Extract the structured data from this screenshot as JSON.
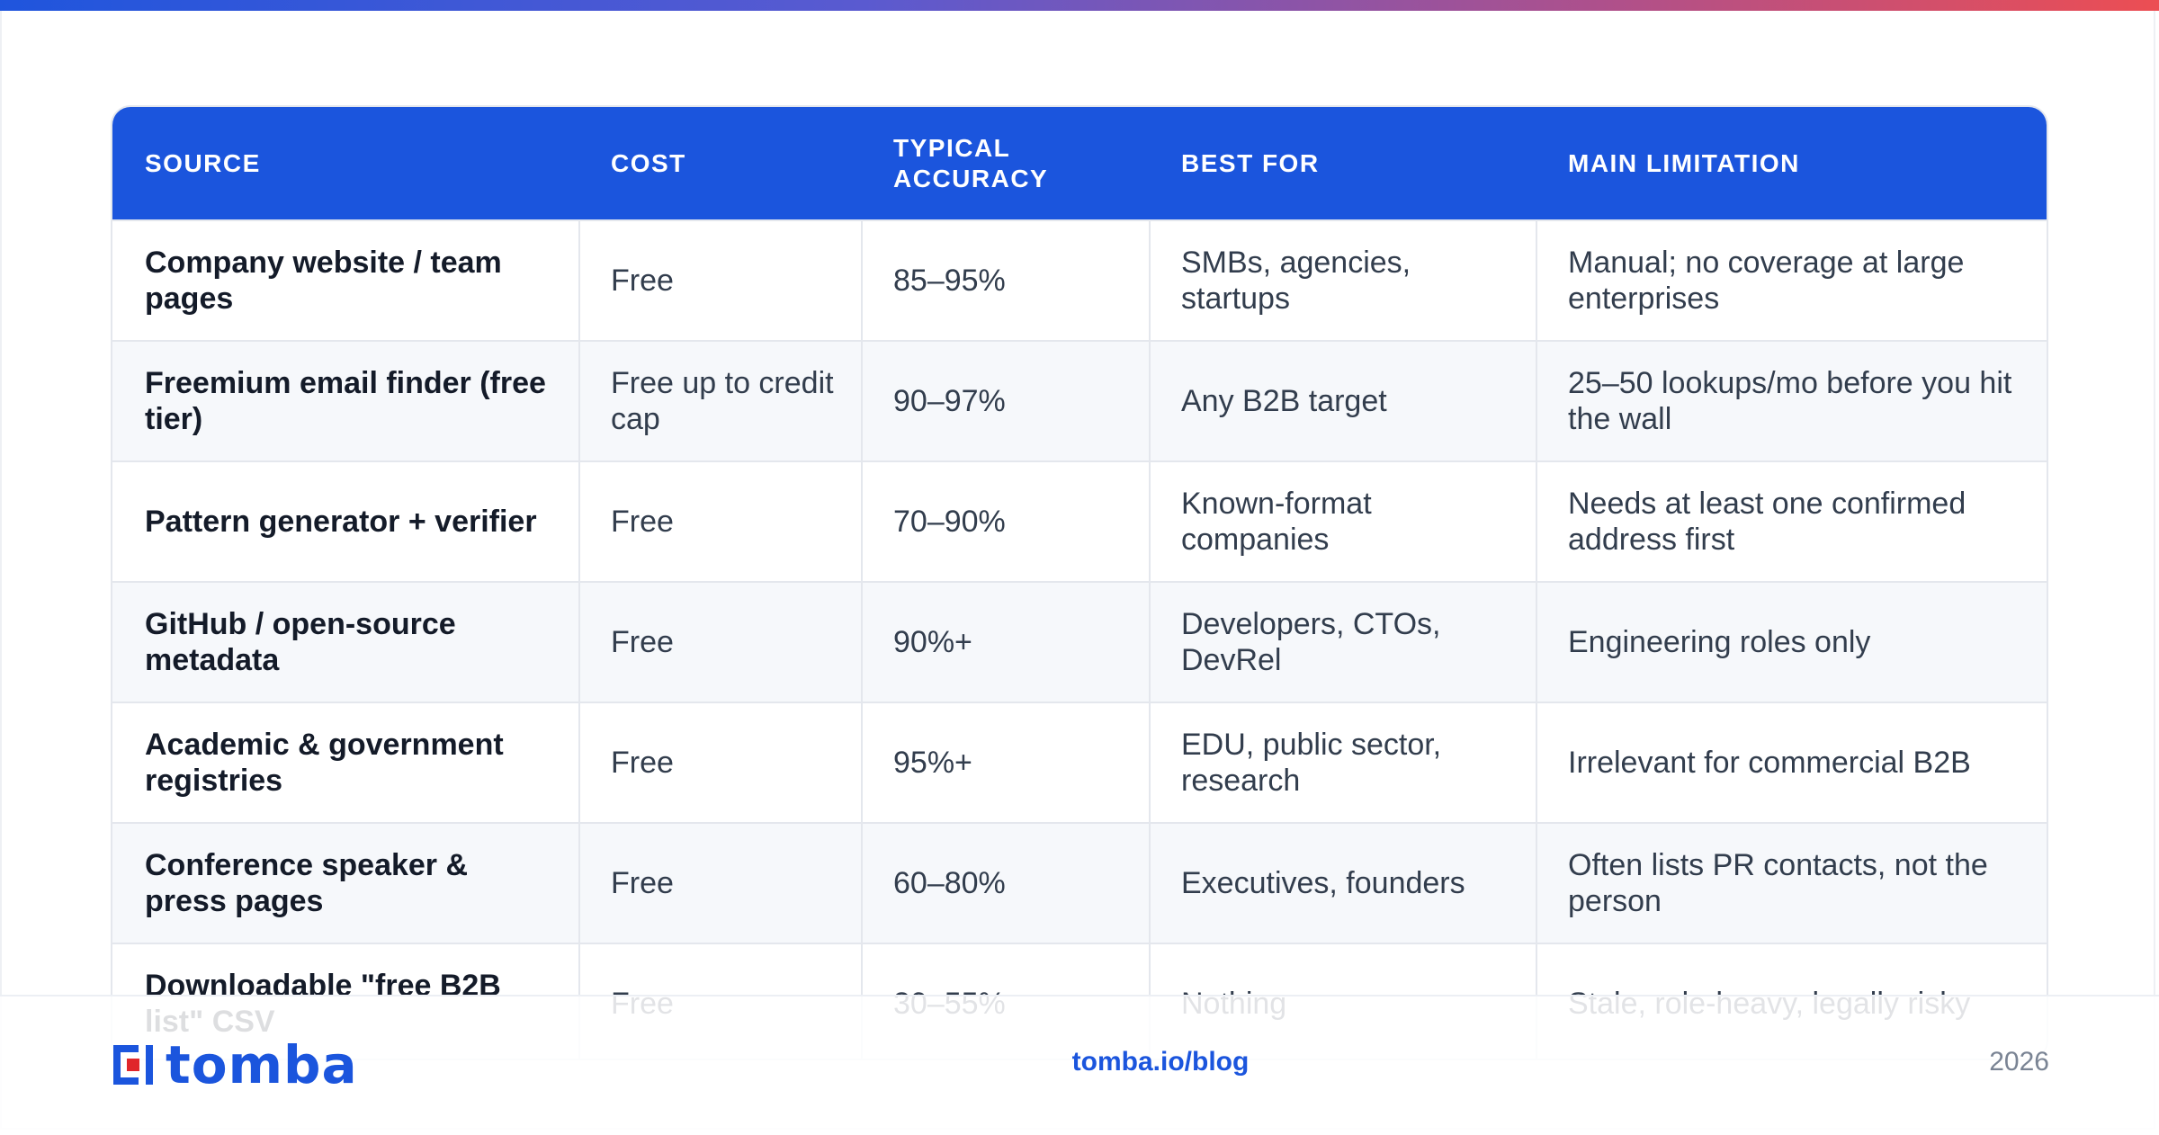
{
  "brand": {
    "logo_text": "tomba",
    "url": "tomba.io/blog",
    "year": "2026",
    "accent_color": "#1b55dd",
    "logo_mark_color": "#e0262b",
    "logo_icon": "tomba-logo-icon"
  },
  "table": {
    "headers": [
      "Source",
      "Cost",
      "Typical Accuracy",
      "Best For",
      "Main Limitation"
    ],
    "rows": [
      {
        "source": "Company website / team pages",
        "cost": "Free",
        "accuracy": "85–95%",
        "best_for": "SMBs, agencies, startups",
        "limitation": "Manual; no coverage at large enterprises"
      },
      {
        "source": "Freemium email finder (free tier)",
        "cost": "Free up to credit cap",
        "accuracy": "90–97%",
        "best_for": "Any B2B target",
        "limitation": "25–50 lookups/mo before you hit the wall"
      },
      {
        "source": "Pattern generator + verifier",
        "cost": "Free",
        "accuracy": "70–90%",
        "best_for": "Known-format companies",
        "limitation": "Needs at least one confirmed address first"
      },
      {
        "source": "GitHub / open-source metadata",
        "cost": "Free",
        "accuracy": "90%+",
        "best_for": "Developers, CTOs, DevRel",
        "limitation": "Engineering roles only"
      },
      {
        "source": "Academic & government registries",
        "cost": "Free",
        "accuracy": "95%+",
        "best_for": "EDU, public sector, research",
        "limitation": "Irrelevant for commercial B2B"
      },
      {
        "source": "Conference speaker & press pages",
        "cost": "Free",
        "accuracy": "60–80%",
        "best_for": "Executives, founders",
        "limitation": "Often lists PR contacts, not the person"
      },
      {
        "source": "Downloadable \"free B2B list\" CSV",
        "cost": "Free",
        "accuracy": "30–55%",
        "best_for": "Nothing",
        "limitation": "Stale, role-heavy, legally risky"
      }
    ]
  }
}
